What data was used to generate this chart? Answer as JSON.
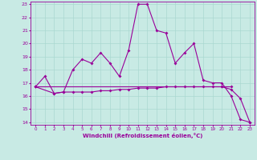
{
  "xlabel": "Windchill (Refroidissement éolien,°C)",
  "background_color": "#c8eae4",
  "line_color": "#990099",
  "grid_color": "#aad8d0",
  "x_hours": [
    0,
    1,
    2,
    3,
    4,
    5,
    6,
    7,
    8,
    9,
    10,
    11,
    12,
    13,
    14,
    15,
    16,
    17,
    18,
    19,
    20,
    21,
    22,
    23
  ],
  "series1": [
    16.7,
    17.5,
    16.2,
    16.3,
    18.0,
    18.8,
    18.5,
    19.3,
    18.5,
    17.5,
    19.5,
    23.0,
    23.0,
    21.0,
    20.8,
    18.5,
    19.3,
    20.0,
    17.2,
    17.0,
    17.0,
    16.0,
    14.2,
    14.0
  ],
  "series2_x": [
    0,
    2,
    3,
    4,
    5,
    6,
    7,
    8,
    9,
    10,
    11,
    12,
    13,
    14,
    15,
    16,
    17,
    18,
    19,
    20,
    21
  ],
  "series2_y": [
    16.7,
    16.2,
    16.3,
    16.3,
    16.3,
    16.3,
    16.4,
    16.4,
    16.5,
    16.5,
    16.6,
    16.6,
    16.6,
    16.7,
    16.7,
    16.7,
    16.7,
    16.7,
    16.7,
    16.7,
    16.7
  ],
  "series3_x": [
    0,
    20,
    21,
    22,
    23
  ],
  "series3_y": [
    16.7,
    16.7,
    16.5,
    15.8,
    14.0
  ],
  "ylim": [
    13.8,
    23.2
  ],
  "xlim": [
    -0.5,
    23.5
  ],
  "yticks": [
    14,
    15,
    16,
    17,
    18,
    19,
    20,
    21,
    22,
    23
  ],
  "xticks": [
    0,
    1,
    2,
    3,
    4,
    5,
    6,
    7,
    8,
    9,
    10,
    11,
    12,
    13,
    14,
    15,
    16,
    17,
    18,
    19,
    20,
    21,
    22,
    23
  ]
}
